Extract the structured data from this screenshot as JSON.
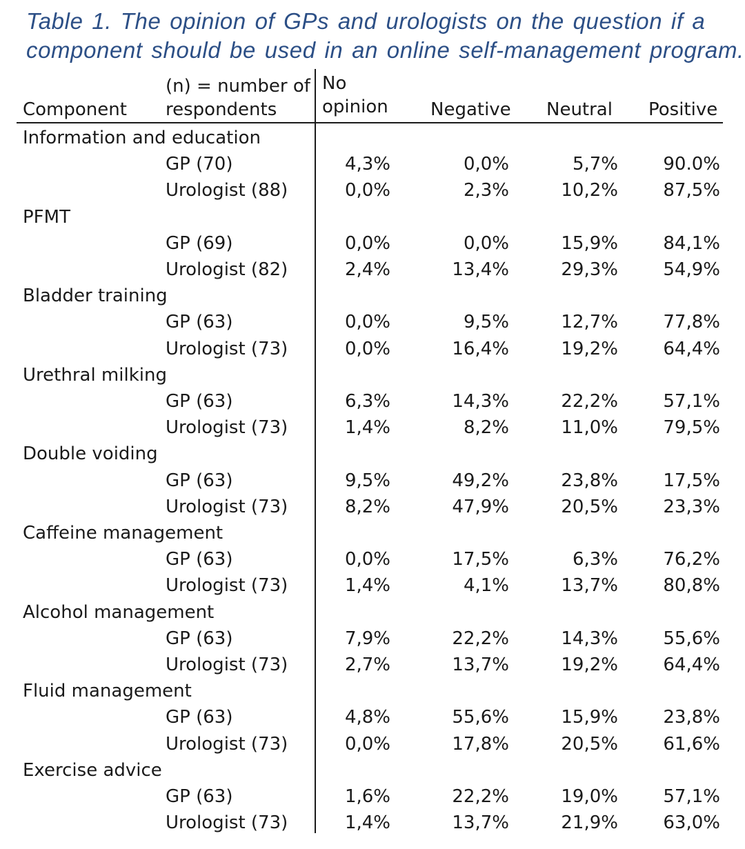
{
  "caption": {
    "line1": "Table 1. The opinion of GPs and urologists on the question if a",
    "line2": "component should be used in an online self-management program."
  },
  "headers": {
    "component": "Component",
    "respondents_line1": "(n) = number of",
    "respondents_line2": "respondents",
    "no_opinion_line1": "No",
    "no_opinion_line2": "opinion",
    "negative": "Negative",
    "neutral": "Neutral",
    "positive": "Positive"
  },
  "groups": [
    {
      "component": "Information and education",
      "rows": [
        {
          "respondents": "GP (70)",
          "no_opinion": "4,3%",
          "negative": "0,0%",
          "neutral": "5,7%",
          "positive": "90.0%"
        },
        {
          "respondents": "Urologist (88)",
          "no_opinion": "0,0%",
          "negative": "2,3%",
          "neutral": "10,2%",
          "positive": "87,5%"
        }
      ]
    },
    {
      "component": "PFMT",
      "rows": [
        {
          "respondents": "GP (69)",
          "no_opinion": "0,0%",
          "negative": "0,0%",
          "neutral": "15,9%",
          "positive": "84,1%"
        },
        {
          "respondents": "Urologist (82)",
          "no_opinion": "2,4%",
          "negative": "13,4%",
          "neutral": "29,3%",
          "positive": "54,9%"
        }
      ]
    },
    {
      "component": "Bladder training",
      "rows": [
        {
          "respondents": "GP (63)",
          "no_opinion": "0,0%",
          "negative": "9,5%",
          "neutral": "12,7%",
          "positive": "77,8%"
        },
        {
          "respondents": "Urologist (73)",
          "no_opinion": "0,0%",
          "negative": "16,4%",
          "neutral": "19,2%",
          "positive": "64,4%"
        }
      ]
    },
    {
      "component": "Urethral milking",
      "rows": [
        {
          "respondents": "GP (63)",
          "no_opinion": "6,3%",
          "negative": "14,3%",
          "neutral": "22,2%",
          "positive": "57,1%"
        },
        {
          "respondents": "Urologist (73)",
          "no_opinion": "1,4%",
          "negative": "8,2%",
          "neutral": "11,0%",
          "positive": "79,5%"
        }
      ]
    },
    {
      "component": "Double voiding",
      "rows": [
        {
          "respondents": "GP (63)",
          "no_opinion": "9,5%",
          "negative": "49,2%",
          "neutral": "23,8%",
          "positive": "17,5%"
        },
        {
          "respondents": "Urologist (73)",
          "no_opinion": "8,2%",
          "negative": "47,9%",
          "neutral": "20,5%",
          "positive": "23,3%"
        }
      ]
    },
    {
      "component": "Caffeine management",
      "rows": [
        {
          "respondents": "GP (63)",
          "no_opinion": "0,0%",
          "negative": "17,5%",
          "neutral": "6,3%",
          "positive": "76,2%"
        },
        {
          "respondents": "Urologist (73)",
          "no_opinion": "1,4%",
          "negative": "4,1%",
          "neutral": "13,7%",
          "positive": "80,8%"
        }
      ]
    },
    {
      "component": "Alcohol management",
      "rows": [
        {
          "respondents": "GP (63)",
          "no_opinion": "7,9%",
          "negative": "22,2%",
          "neutral": "14,3%",
          "positive": "55,6%"
        },
        {
          "respondents": "Urologist (73)",
          "no_opinion": "2,7%",
          "negative": "13,7%",
          "neutral": "19,2%",
          "positive": "64,4%"
        }
      ]
    },
    {
      "component": "Fluid management",
      "rows": [
        {
          "respondents": "GP (63)",
          "no_opinion": "4,8%",
          "negative": "55,6%",
          "neutral": "15,9%",
          "positive": "23,8%"
        },
        {
          "respondents": "Urologist (73)",
          "no_opinion": "0,0%",
          "negative": "17,8%",
          "neutral": "20,5%",
          "positive": "61,6%"
        }
      ]
    },
    {
      "component": "Exercise advice",
      "rows": [
        {
          "respondents": "GP (63)",
          "no_opinion": "1,6%",
          "negative": "22,2%",
          "neutral": "19,0%",
          "positive": "57,1%"
        },
        {
          "respondents": "Urologist (73)",
          "no_opinion": "1,4%",
          "negative": "13,7%",
          "neutral": "21,9%",
          "positive": "63,0%"
        }
      ]
    }
  ],
  "colors": {
    "caption": "#2c4f86",
    "text": "#1a1a1a"
  }
}
